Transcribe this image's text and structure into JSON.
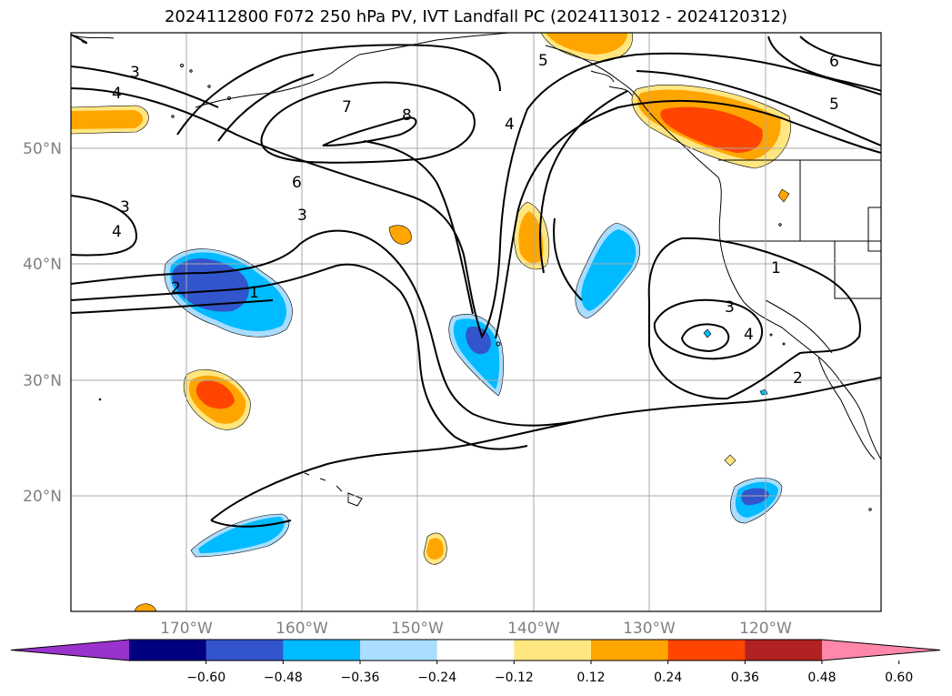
{
  "title": "2024112800 F072 250 hPa PV, IVT Landfall PC (2024113012 - 2024120312)",
  "map": {
    "lat_labels": [
      "50°N",
      "40°N",
      "30°N",
      "20°N"
    ],
    "lon_labels": [
      "170°W",
      "160°W",
      "150°W",
      "140°W",
      "130°W",
      "120°W"
    ],
    "gridlines": true
  },
  "pv_contour_labels": [
    "1",
    "2",
    "3",
    "3",
    "3",
    "4",
    "4",
    "4",
    "5",
    "5",
    "6",
    "6",
    "7",
    "8",
    "1",
    "2",
    "3",
    "4"
  ],
  "colorbar": {
    "tick_labels": [
      "−0.60",
      "−0.48",
      "−0.36",
      "−0.24",
      "−0.12",
      "0.12",
      "0.24",
      "0.36",
      "0.48",
      "0.60"
    ],
    "colors": [
      "#9933cc",
      "#000080",
      "#3355cc",
      "#00bbff",
      "#aaddff",
      "#ffffff",
      "#ffe680",
      "#ffa500",
      "#ff4500",
      "#b22222",
      "#ff88aa"
    ]
  }
}
